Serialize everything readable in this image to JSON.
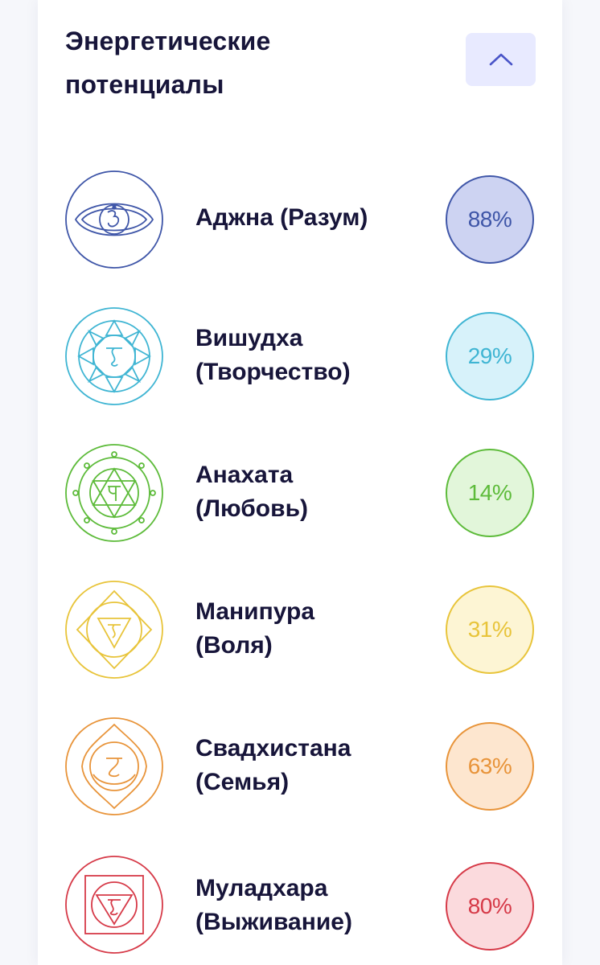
{
  "header": {
    "title_line1": "Энергетические",
    "title_line2": "потенциалы",
    "toggle_icon": "chevron-up-icon"
  },
  "chakras": [
    {
      "name_line1": "Аджна (Разум)",
      "name_line2": "",
      "value": "88%",
      "color": "#3f56a8",
      "fill": "#cdd3f2",
      "icon": "ajna-chakra-icon"
    },
    {
      "name_line1": "Вишудха",
      "name_line2": "(Творчество)",
      "value": "29%",
      "color": "#3fb5d3",
      "fill": "#d7f2fa",
      "icon": "vishuddha-chakra-icon"
    },
    {
      "name_line1": "Анахата",
      "name_line2": "(Любовь)",
      "value": "14%",
      "color": "#5dbb3a",
      "fill": "#e2f6da",
      "icon": "anahata-chakra-icon"
    },
    {
      "name_line1": "Манипура",
      "name_line2": "(Воля)",
      "value": "31%",
      "color": "#e8c43a",
      "fill": "#fdf5d4",
      "icon": "manipura-chakra-icon"
    },
    {
      "name_line1": "Свадхистана",
      "name_line2": "(Семья)",
      "value": "63%",
      "color": "#e8943a",
      "fill": "#fde6cf",
      "icon": "svadhisthana-chakra-icon"
    },
    {
      "name_line1": "Муладхара",
      "name_line2": "(Выживание)",
      "value": "80%",
      "color": "#d63a48",
      "fill": "#fbdadd",
      "icon": "muladhara-chakra-icon"
    }
  ]
}
